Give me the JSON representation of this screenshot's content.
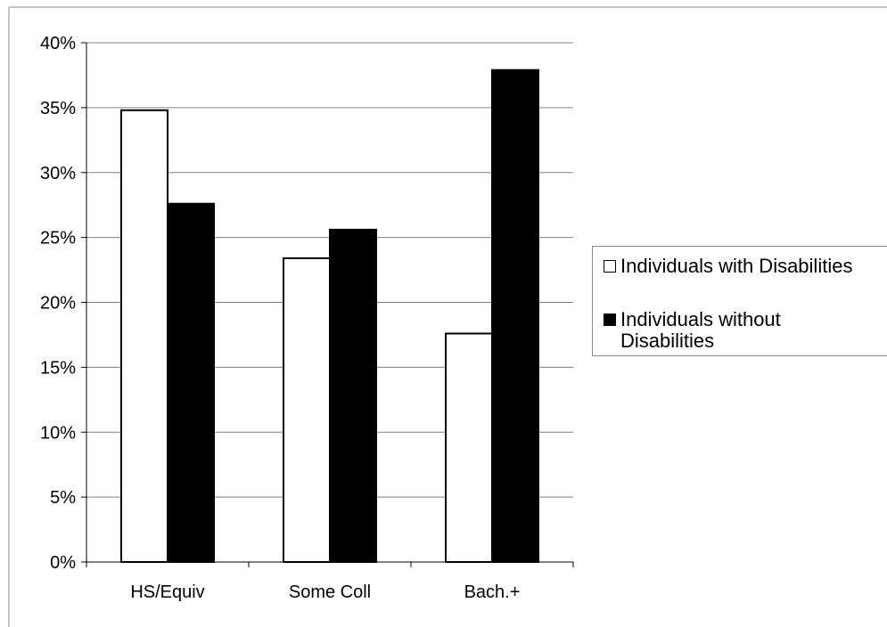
{
  "chart_data": {
    "type": "bar",
    "categories": [
      "HS/Equiv",
      "Some Coll",
      "Bach.+"
    ],
    "series": [
      {
        "name": "Individuals with Disabilities",
        "values": [
          34.8,
          23.4,
          17.6
        ],
        "color": "#ffffff"
      },
      {
        "name": "Individuals without Disabilities",
        "values": [
          27.6,
          25.6,
          37.9
        ],
        "color": "#000000"
      }
    ],
    "y_ticks": [
      "0%",
      "5%",
      "10%",
      "15%",
      "20%",
      "25%",
      "30%",
      "35%",
      "40%"
    ],
    "ylim": [
      0,
      40
    ],
    "grid": true,
    "legend_position": "right",
    "title": "",
    "xlabel": "",
    "ylabel": ""
  }
}
